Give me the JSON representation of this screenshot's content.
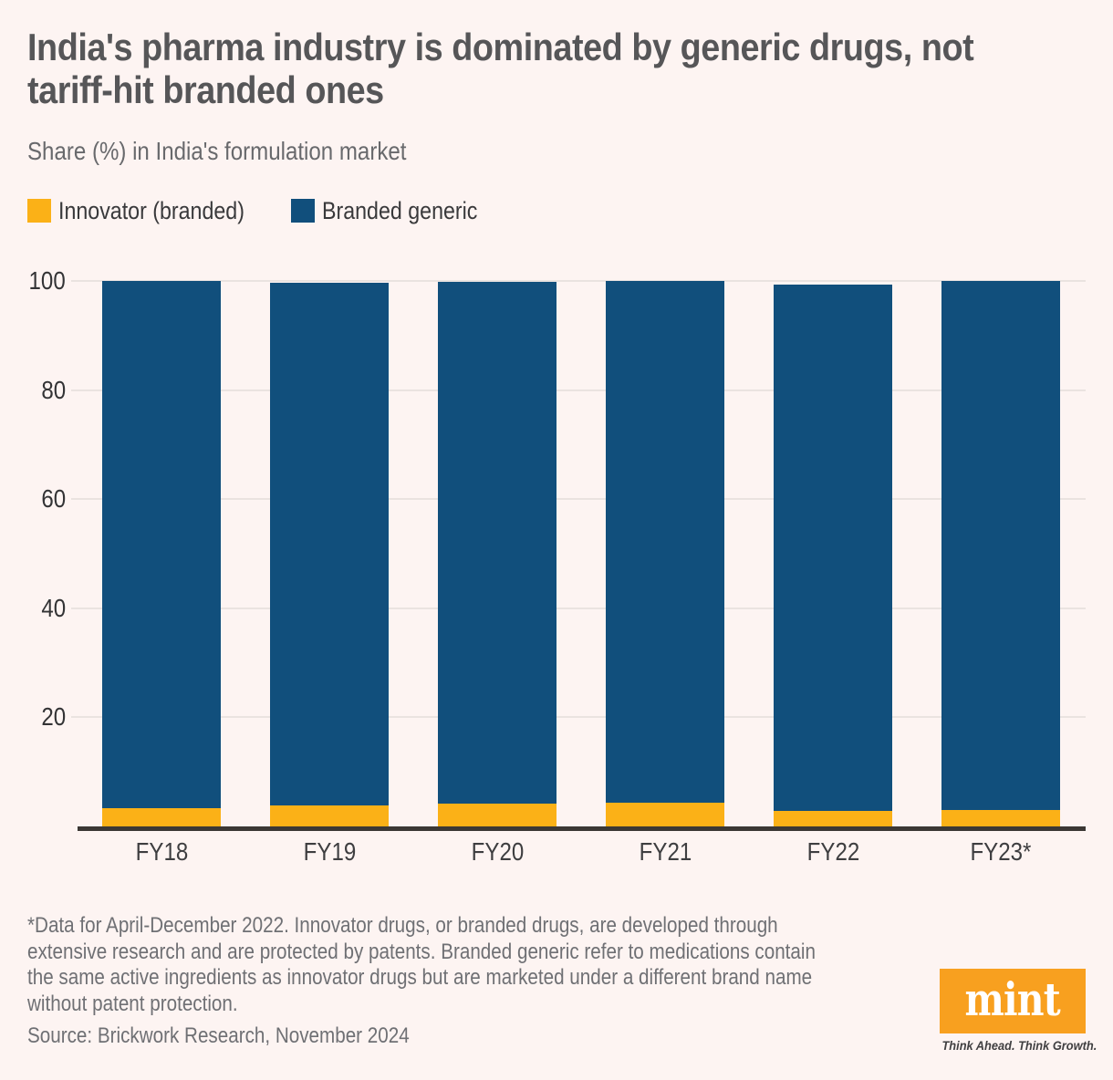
{
  "title_lines": [
    "India's pharma industry is dominated by generic drugs, not",
    "tariff-hit branded ones"
  ],
  "subtitle": "Share (%) in India's formulation market",
  "legend": [
    {
      "label": "Innovator (branded)",
      "color": "#FBB117"
    },
    {
      "label": "Branded generic",
      "color": "#114F7C"
    }
  ],
  "chart_data": {
    "type": "bar",
    "stacked": true,
    "title": "India's pharma industry is dominated by generic drugs, not tariff-hit branded ones",
    "subtitle": "Share (%) in India's formulation market",
    "categories": [
      "FY18",
      "FY19",
      "FY20",
      "FY21",
      "FY22",
      "FY23*"
    ],
    "series": [
      {
        "name": "Innovator (branded)",
        "color": "#FBB117",
        "values": [
          3.4,
          3.8,
          4.1,
          4.3,
          2.9,
          3.0
        ]
      },
      {
        "name": "Branded generic",
        "color": "#114F7C",
        "values": [
          96.6,
          95.9,
          95.8,
          95.7,
          96.4,
          97.0
        ]
      }
    ],
    "ylabel": "Share (%)",
    "xlabel": "",
    "ylim": [
      0,
      100
    ],
    "yticks": [
      20,
      40,
      60,
      80,
      100
    ],
    "grid": true,
    "legend_position": "top-left"
  },
  "footnote_lines": [
    "*Data for April-December 2022. Innovator drugs, or branded drugs, are developed through",
    "extensive research and are protected by patents. Branded generic refer to medications contain",
    "the same active ingredients as innovator drugs but are marketed under a different brand name",
    "without patent protection."
  ],
  "source": "Source: Brickwork Research, November 2024",
  "logo": {
    "text": "mint",
    "tagline": "Think Ahead. Think Growth.",
    "bg_color": "#F8A01F"
  },
  "colors": {
    "background": "#FDF4F2",
    "innovator": "#FBB117",
    "branded_generic": "#114F7C",
    "axis_line": "#3B3734",
    "gridline": "#EAE3E0"
  }
}
